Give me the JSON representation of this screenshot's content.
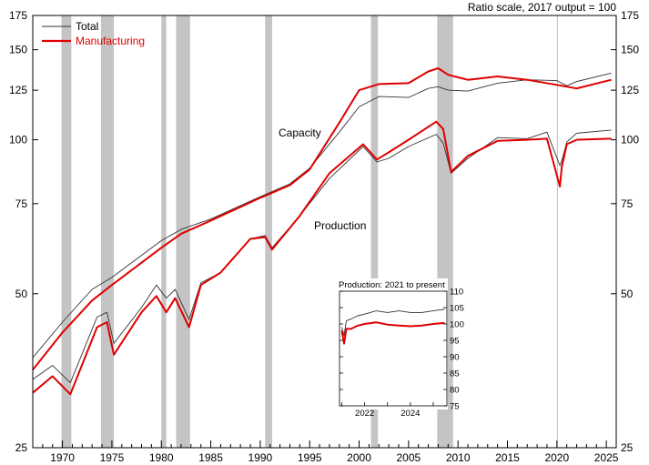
{
  "chart_data": {
    "type": "line",
    "scale_note": "Ratio scale, 2017 output = 100",
    "y_scale": "log",
    "ylim": [
      25,
      175
    ],
    "yticks": [
      25,
      50,
      75,
      100,
      125,
      150,
      175
    ],
    "xlim": [
      1967,
      2026
    ],
    "xticks": [
      1970,
      1975,
      1980,
      1985,
      1990,
      1995,
      2000,
      2005,
      2010,
      2015,
      2020,
      2025
    ],
    "legend": {
      "placement": "top-left",
      "entries": [
        {
          "name": "Total",
          "color": "#333333"
        },
        {
          "name": "Manufacturing",
          "color": "#e00000"
        }
      ]
    },
    "annotations": {
      "capacity": "Capacity",
      "production": "Production"
    },
    "recessions": [
      [
        1969.9,
        1970.9
      ],
      [
        1973.9,
        1975.2
      ],
      [
        1980.0,
        1980.5
      ],
      [
        1981.5,
        1982.9
      ],
      [
        1990.5,
        1991.2
      ],
      [
        2001.2,
        2001.9
      ],
      [
        2007.9,
        2009.5
      ]
    ],
    "series": [
      {
        "name": "Total",
        "role": "capacity",
        "color": "#333333",
        "width": 0.9,
        "x": [
          1967,
          1970,
          1973,
          1975,
          1980,
          1982,
          1985,
          1990,
          1993,
          1995,
          1998,
          2000,
          2002,
          2005,
          2007,
          2008,
          2009,
          2011,
          2014,
          2017,
          2020,
          2021,
          2022,
          2025.5
        ],
        "y": [
          37.5,
          44,
          51,
          53.8,
          63.5,
          66.8,
          70,
          77.4,
          82,
          88,
          103.5,
          116,
          121.5,
          121,
          126,
          127,
          125,
          124.5,
          129,
          131,
          130.5,
          127.5,
          130,
          135
        ]
      },
      {
        "name": "Manufacturing",
        "role": "capacity",
        "color": "#e00000",
        "width": 2,
        "x": [
          1967,
          1970,
          1973,
          1975,
          1980,
          1982,
          1985,
          1990,
          1993,
          1995,
          1998,
          2000,
          2002,
          2005,
          2007,
          2008,
          2009,
          2011,
          2014,
          2017,
          2020,
          2022,
          2025.5
        ],
        "y": [
          35.5,
          42,
          48.5,
          52,
          61.5,
          65.5,
          69.5,
          77,
          81.5,
          87.5,
          108,
          125,
          128.5,
          129,
          136,
          138,
          134,
          131,
          133,
          131,
          128,
          126,
          131
        ]
      },
      {
        "name": "Total",
        "role": "production",
        "color": "#333333",
        "width": 0.9,
        "x": [
          1967,
          1969,
          1970.8,
          1973.5,
          1974.5,
          1975.2,
          1978,
          1979.5,
          1980.5,
          1981.4,
          1982.8,
          1984,
          1986,
          1989,
          1990.5,
          1991.2,
          1994,
          1997,
          2000.4,
          2001.8,
          2003,
          2005,
          2007.8,
          2008.5,
          2009.3,
          2011,
          2014,
          2017,
          2019,
          2020.3,
          2020.5,
          2021,
          2022,
          2025.5
        ],
        "y": [
          34,
          36.2,
          33.5,
          45,
          46,
          40,
          47,
          52,
          49,
          51,
          44.5,
          52.5,
          55,
          64,
          65,
          61.5,
          71,
          84,
          97,
          90.5,
          92,
          97,
          102.5,
          98.5,
          86,
          92,
          101,
          100.5,
          103.5,
          89,
          91,
          99,
          103,
          104.5
        ]
      },
      {
        "name": "Manufacturing",
        "role": "production",
        "color": "#e00000",
        "width": 2,
        "x": [
          1967,
          1969,
          1970.8,
          1973.5,
          1974.5,
          1975.2,
          1978,
          1979.5,
          1980.5,
          1981.4,
          1982.8,
          1984,
          1986,
          1989,
          1990.5,
          1991.2,
          1994,
          1997,
          2000.4,
          2001.8,
          2003,
          2005,
          2007.8,
          2008.5,
          2009.3,
          2011,
          2014,
          2017,
          2019,
          2020.3,
          2020.5,
          2021,
          2022,
          2025.5
        ],
        "y": [
          32,
          34.5,
          31.8,
          43,
          44,
          38,
          46,
          49.5,
          46,
          49,
          43,
          52,
          55,
          64,
          64.5,
          61,
          71,
          86,
          98,
          91.5,
          94.5,
          100,
          108.5,
          105,
          86.5,
          93,
          99.5,
          100,
          100.5,
          81,
          88.5,
          98,
          100,
          100.5
        ]
      }
    ],
    "inset": {
      "title": "Production: 2021 to present",
      "type": "line",
      "xlim": [
        2020.9,
        2025.6
      ],
      "xticks": [
        2022,
        2024
      ],
      "ylim": [
        75,
        110
      ],
      "yticks": [
        75,
        80,
        85,
        90,
        95,
        100,
        105,
        110
      ],
      "series": [
        {
          "name": "Total",
          "color": "#333333",
          "width": 0.9,
          "x": [
            2021.0,
            2021.1,
            2021.2,
            2021.4,
            2021.7,
            2022.0,
            2022.5,
            2023.0,
            2023.5,
            2024.0,
            2024.5,
            2025.0,
            2025.5
          ],
          "y": [
            99,
            96.5,
            101,
            101.5,
            102.5,
            103,
            104,
            103.5,
            104,
            103.5,
            103.5,
            104,
            104.5
          ]
        },
        {
          "name": "Manufacturing",
          "color": "#e00000",
          "width": 2,
          "x": [
            2021.0,
            2021.1,
            2021.2,
            2021.4,
            2021.7,
            2022.0,
            2022.5,
            2023.0,
            2023.5,
            2024.0,
            2024.5,
            2025.0,
            2025.5
          ],
          "y": [
            98,
            94,
            98.5,
            98.5,
            99.5,
            100,
            100.5,
            99.8,
            99.5,
            99.3,
            99.5,
            100,
            100.3
          ]
        }
      ]
    }
  }
}
